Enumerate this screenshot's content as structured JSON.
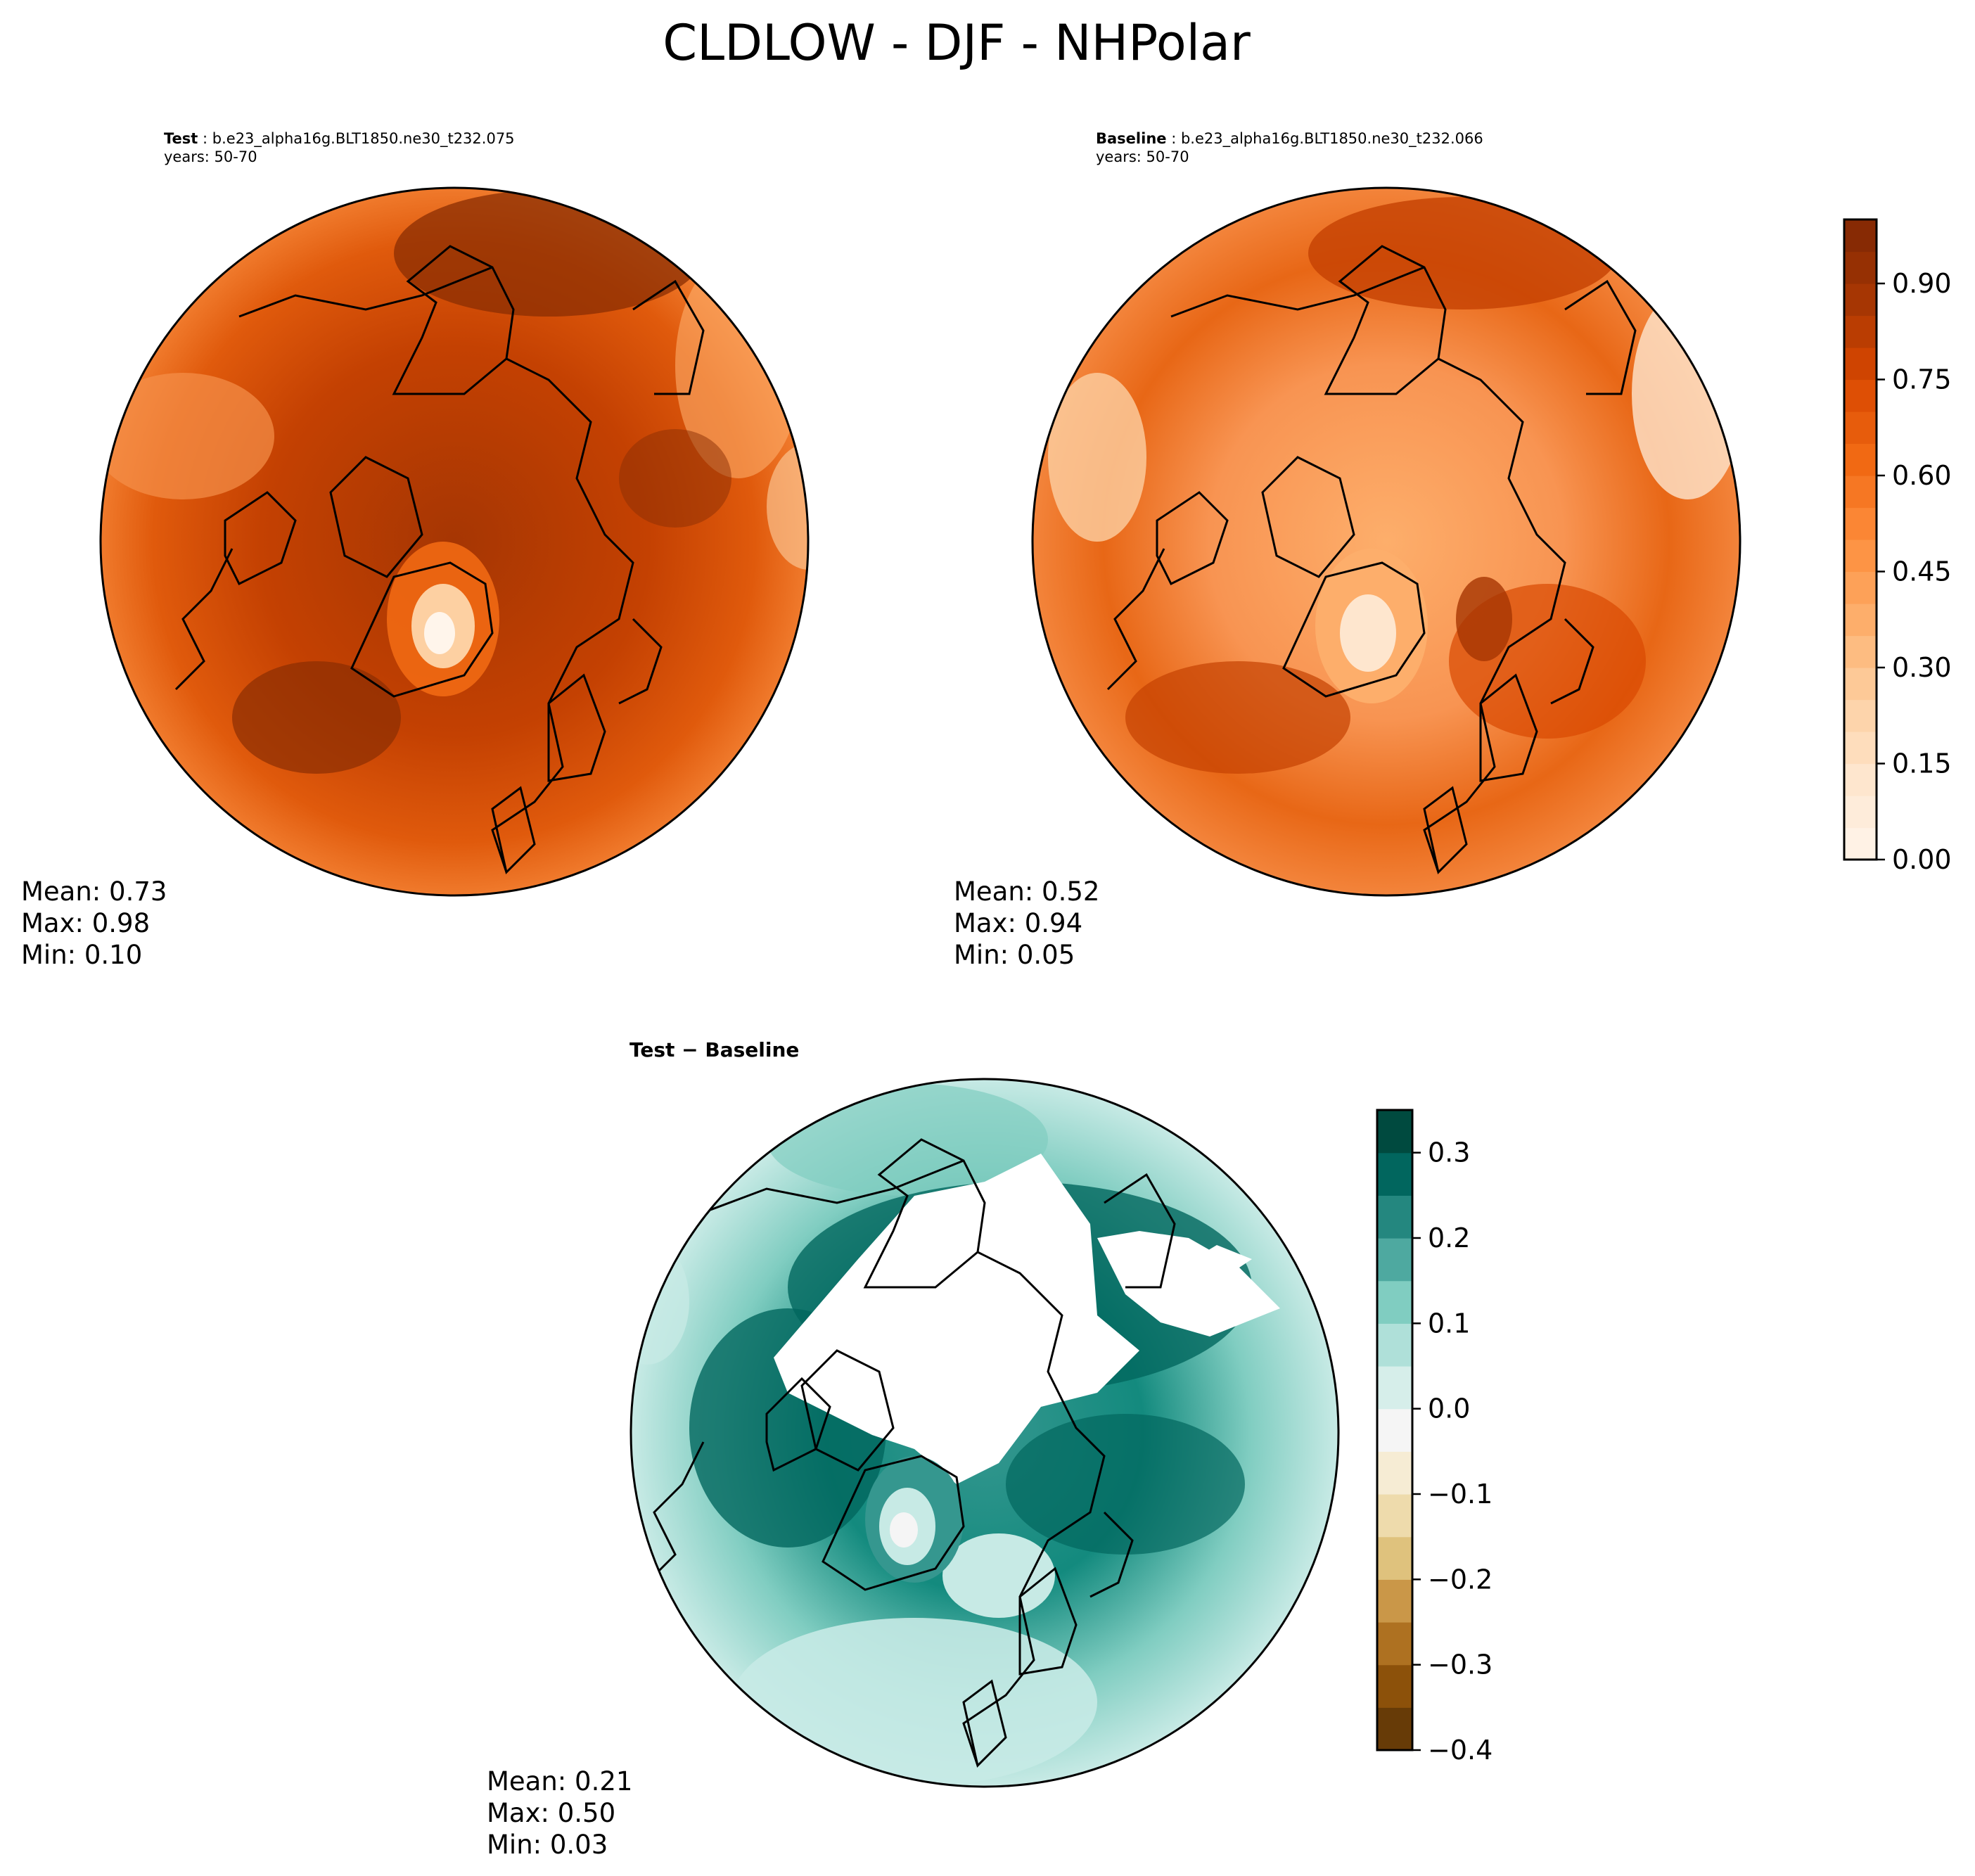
{
  "title": "CLDLOW - DJF - NHPolar",
  "panels": {
    "test": {
      "label": "Test",
      "case": "b.e23_alpha16g.BLT1850.ne30_t232.075",
      "years": "years: 50-70",
      "mean": "Mean:  0.73",
      "max": "Max:  0.98",
      "min": "Min:  0.10"
    },
    "baseline": {
      "label": "Baseline",
      "case": "b.e23_alpha16g.BLT1850.ne30_t232.066",
      "years": "years: 50-70",
      "mean": "Mean:  0.52",
      "max": "Max:  0.94",
      "min": "Min:  0.05"
    },
    "diff": {
      "title": "Test − Baseline",
      "mean": "Mean:  0.21",
      "max": "Max:  0.50",
      "min": "Min:  0.03"
    }
  },
  "colors": {
    "oranges": [
      "#fff5eb",
      "#fee6ce",
      "#fdd0a2",
      "#fdae6b",
      "#fd8d3c",
      "#f16913",
      "#d94801",
      "#a63603",
      "#7f2704"
    ],
    "diverging": [
      "#543005",
      "#8c510a",
      "#bf812d",
      "#dfc27d",
      "#f6e8c3",
      "#f5f5f5",
      "#c7eae5",
      "#80cdc1",
      "#35978f",
      "#01665e",
      "#003c30"
    ]
  },
  "chart_data": [
    {
      "type": "heatmap",
      "name": "Test",
      "projection": "NH polar stereographic",
      "variable": "CLDLOW",
      "season": "DJF",
      "stats": {
        "mean": 0.73,
        "max": 0.98,
        "min": 0.1
      },
      "colorbar": {
        "range": [
          0.0,
          1.0
        ],
        "ticks": [
          0.0,
          0.15,
          0.3,
          0.45,
          0.6,
          0.75,
          0.9
        ],
        "tick_labels": [
          "0.00",
          "0.15",
          "0.30",
          "0.45",
          "0.60",
          "0.75",
          "0.90"
        ],
        "levels": 20,
        "colormap": "Oranges"
      }
    },
    {
      "type": "heatmap",
      "name": "Baseline",
      "projection": "NH polar stereographic",
      "variable": "CLDLOW",
      "season": "DJF",
      "stats": {
        "mean": 0.52,
        "max": 0.94,
        "min": 0.05
      },
      "colorbar": {
        "range": [
          0.0,
          1.0
        ],
        "ticks": [
          0.0,
          0.15,
          0.3,
          0.45,
          0.6,
          0.75,
          0.9
        ],
        "tick_labels": [
          "0.00",
          "0.15",
          "0.30",
          "0.45",
          "0.60",
          "0.75",
          "0.90"
        ],
        "levels": 20,
        "colormap": "Oranges"
      }
    },
    {
      "type": "heatmap",
      "name": "Test − Baseline",
      "projection": "NH polar stereographic",
      "stats": {
        "mean": 0.21,
        "max": 0.5,
        "min": 0.03
      },
      "colorbar": {
        "range": [
          -0.4,
          0.35
        ],
        "ticks": [
          -0.4,
          -0.3,
          -0.2,
          -0.1,
          0.0,
          0.1,
          0.2,
          0.3
        ],
        "tick_labels": [
          "−0.4",
          "−0.3",
          "−0.2",
          "−0.1",
          "0.0",
          "0.1",
          "0.2",
          "0.3"
        ],
        "levels": 15,
        "colormap": "BrBG"
      }
    }
  ]
}
